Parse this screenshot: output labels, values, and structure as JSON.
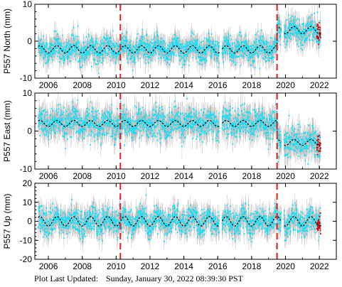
{
  "chart_data": [
    {
      "type": "scatter",
      "ylabel": "P557 North (mm)",
      "xlim": [
        2005.2,
        2023.0
      ],
      "ylim": [
        -10,
        10
      ],
      "yticks": [
        -10,
        0,
        10
      ],
      "xticks": [
        2006,
        2008,
        2010,
        2012,
        2014,
        2016,
        2018,
        2020,
        2022
      ],
      "event_lines": [
        2010.25,
        2019.5
      ],
      "model": {
        "offset_before": -2.2,
        "offset_after": 3.0,
        "seasonal_amplitude": 1.0,
        "step_at": 2019.5
      },
      "scatter_band": 3.0,
      "colors": {
        "data": "#00e5ff",
        "error": "#bbbbbb",
        "model": "#000000",
        "event": "#dd2222",
        "recent": "#dd0000"
      }
    },
    {
      "type": "scatter",
      "ylabel": "P557 East (mm)",
      "xlim": [
        2005.2,
        2023.0
      ],
      "ylim": [
        -10,
        10
      ],
      "yticks": [
        -10,
        0,
        10
      ],
      "xticks": [
        2006,
        2008,
        2010,
        2012,
        2014,
        2016,
        2018,
        2020,
        2022
      ],
      "event_lines": [
        2010.25,
        2019.5
      ],
      "model": {
        "offset_before": 2.0,
        "offset_after": -3.0,
        "seasonal_amplitude": 0.8,
        "step_at": 2019.5
      },
      "scatter_band": 3.5,
      "colors": {
        "data": "#00e5ff",
        "error": "#bbbbbb",
        "model": "#000000",
        "event": "#dd2222",
        "recent": "#dd0000"
      }
    },
    {
      "type": "scatter",
      "ylabel": "P557 Up (mm)",
      "xlim": [
        2005.2,
        2023.0
      ],
      "ylim": [
        -20,
        20
      ],
      "yticks": [
        -20,
        -10,
        0,
        10,
        20
      ],
      "xticks": [
        2006,
        2008,
        2010,
        2012,
        2014,
        2016,
        2018,
        2020,
        2022
      ],
      "event_lines": [
        2010.25,
        2019.5
      ],
      "model": {
        "offset_before": 0.0,
        "offset_after": 0.0,
        "seasonal_amplitude": 2.5,
        "step_at": 2019.5
      },
      "scatter_band": 6.0,
      "colors": {
        "data": "#00e5ff",
        "error": "#bbbbbb",
        "model": "#000000",
        "event": "#dd2222",
        "recent": "#dd0000"
      }
    }
  ],
  "footer": {
    "label": "Plot Last Updated:",
    "timestamp": "Sunday, January 30, 2022 08:39:30 PST"
  }
}
